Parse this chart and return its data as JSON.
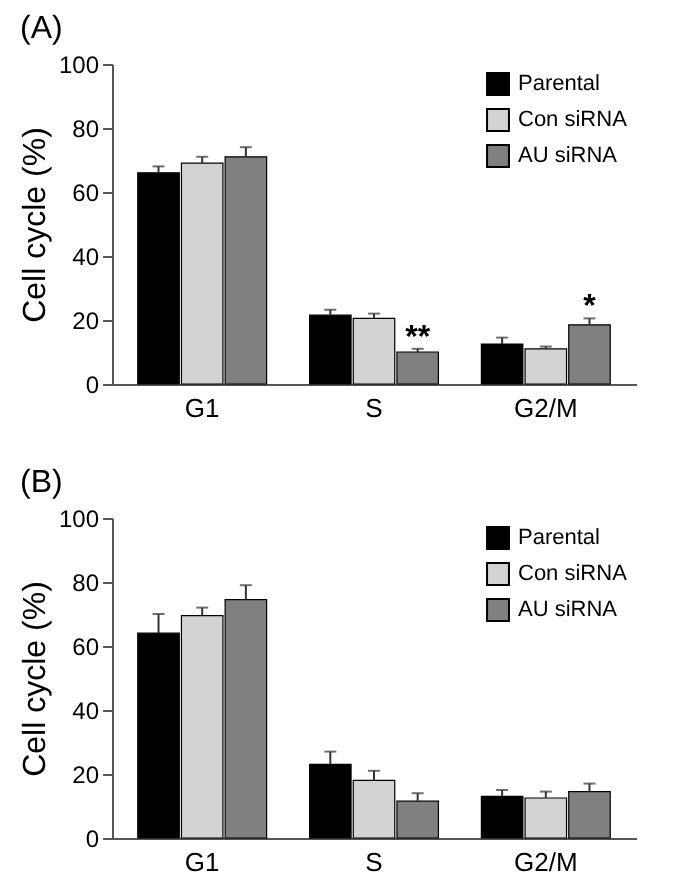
{
  "chart_data": [
    {
      "type": "bar",
      "title": "(A)",
      "ylabel": "Cell cycle (%)",
      "categories": [
        "G1",
        "S",
        "G2/M"
      ],
      "ylim": [
        0,
        100
      ],
      "yticks": [
        0,
        20,
        40,
        60,
        80,
        100
      ],
      "grid": false,
      "legend": "top right",
      "series": [
        {
          "name": "Parental",
          "color": "#000000",
          "values": [
            66,
            21.5,
            12.5
          ],
          "errors": [
            [
              66,
              68
            ],
            [
              21.5,
              23.2
            ],
            [
              12.5,
              14.5
            ]
          ]
        },
        {
          "name": "Con siRNA",
          "color": "#d3d3d3",
          "values": [
            69,
            20.5,
            11
          ],
          "errors": [
            [
              69,
              71
            ],
            [
              20.5,
              22
            ],
            [
              11,
              11.7
            ]
          ]
        },
        {
          "name": "AU siRNA",
          "color": "#808080",
          "values": [
            71,
            10,
            18.5
          ],
          "errors": [
            [
              71,
              74
            ],
            [
              10,
              11
            ],
            [
              18.5,
              20.5
            ]
          ]
        }
      ],
      "annotations": [
        "**",
        "*"
      ]
    },
    {
      "type": "bar",
      "title": "(B)",
      "ylabel": "Cell cycle (%)",
      "categories": [
        "G1",
        "S",
        "G2/M"
      ],
      "ylim": [
        0,
        100
      ],
      "yticks": [
        0,
        20,
        40,
        60,
        80,
        100
      ],
      "grid": false,
      "legend": "top right",
      "series": [
        {
          "name": "Parental",
          "color": "#000000",
          "values": [
            64,
            23,
            13
          ],
          "errors": [
            [
              64,
              70
            ],
            [
              23,
              27
            ],
            [
              13,
              15
            ]
          ]
        },
        {
          "name": "Con siRNA",
          "color": "#d3d3d3",
          "values": [
            69.5,
            18,
            12.5
          ],
          "errors": [
            [
              69.5,
              72
            ],
            [
              18,
              21
            ],
            [
              12.5,
              14.5
            ]
          ]
        },
        {
          "name": "AU siRNA",
          "color": "#808080",
          "values": [
            74.5,
            11.5,
            14.5
          ],
          "errors": [
            [
              74.5,
              79
            ],
            [
              11.5,
              14
            ],
            [
              14.5,
              17
            ]
          ]
        }
      ]
    }
  ]
}
